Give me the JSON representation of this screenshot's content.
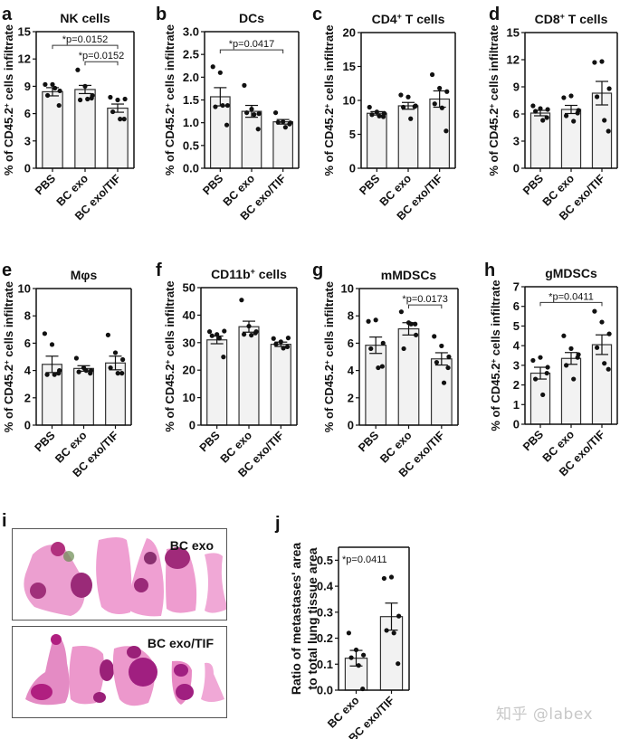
{
  "watermark": "知乎 @labex",
  "colors": {
    "bar_fill": "#f2f2f2",
    "bar_stroke": "#333333",
    "dot": "#111111",
    "tissue": "#e67fc0",
    "metastasis": "#b1207c",
    "necrosis": "#6a8a50"
  },
  "chart_data": [
    {
      "letter": "a",
      "type": "bar",
      "title": "NK cells",
      "title_sup": "",
      "ylabel": "% of CD45.2+ cells infiltrate",
      "categories": [
        "PBS",
        "BC exo",
        "BC exo/TIF"
      ],
      "ylim": [
        0,
        15
      ],
      "yticks": [
        0,
        3,
        6,
        9,
        12,
        15
      ],
      "means": [
        8.4,
        8.65,
        6.6
      ],
      "sem": [
        0.45,
        0.45,
        0.45
      ],
      "points": [
        [
          9.2,
          9.2,
          8.5,
          8.0,
          8.8,
          6.9
        ],
        [
          10.8,
          9.0,
          8.0,
          7.5,
          7.6,
          7.7
        ],
        [
          7.8,
          7.5,
          7.6,
          6.2,
          5.4,
          5.4
        ]
      ],
      "significance": [
        {
          "from": 0,
          "to": 2,
          "label": "*p=0.0152",
          "y": 13.5
        },
        {
          "from": 1,
          "to": 2,
          "label": "*p=0.0152",
          "y": 11.7
        }
      ]
    },
    {
      "letter": "b",
      "type": "bar",
      "title": "DCs",
      "title_sup": "",
      "ylabel": "% of CD45.2+ cells infiltrate",
      "categories": [
        "PBS",
        "BC exo",
        "BC exo/TIF"
      ],
      "ylim": [
        0,
        3.0
      ],
      "yticks": [
        "0.0",
        "0.5",
        "1.0",
        "1.5",
        "2.0",
        "2.5",
        "3.0"
      ],
      "means": [
        1.57,
        1.25,
        1.02
      ],
      "sem": [
        0.2,
        0.13,
        0.05
      ],
      "points": [
        [
          2.23,
          2.1,
          1.38,
          1.35,
          1.38,
          0.95
        ],
        [
          1.82,
          1.3,
          1.2,
          1.22,
          1.18,
          0.86
        ],
        [
          1.22,
          1.02,
          1.0,
          1.01,
          0.9,
          0.97
        ]
      ],
      "significance": [
        {
          "from": 0,
          "to": 2,
          "label": "*p=0.0417",
          "y": 2.6
        }
      ]
    },
    {
      "letter": "c",
      "type": "bar",
      "title": "CD4",
      "title_sup": "+",
      "title_suffix": " T cells",
      "ylabel": "% of CD45.2+ cells infiltrate",
      "categories": [
        "PBS",
        "BC exo",
        "BC exo/TIF"
      ],
      "ylim": [
        0,
        20
      ],
      "yticks": [
        0,
        5,
        10,
        15,
        20
      ],
      "means": [
        8.1,
        9.2,
        10.2
      ],
      "sem": [
        0.25,
        0.5,
        1.2
      ],
      "points": [
        [
          9.0,
          8.3,
          8.1,
          7.9,
          7.7,
          7.6
        ],
        [
          10.8,
          10.5,
          9.2,
          9.0,
          7.3,
          9.1
        ],
        [
          13.8,
          11.8,
          11.3,
          9.5,
          8.9,
          5.5
        ]
      ],
      "significance": []
    },
    {
      "letter": "d",
      "type": "bar",
      "title": "CD8",
      "title_sup": "+",
      "title_suffix": " T cells",
      "ylabel": "% of CD45.2+ cells infiltrate",
      "categories": [
        "PBS",
        "BC exo",
        "BC exo/TIF"
      ],
      "ylim": [
        0,
        15
      ],
      "yticks": [
        0,
        3,
        6,
        9,
        12,
        15
      ],
      "means": [
        6.1,
        6.5,
        8.3
      ],
      "sem": [
        0.3,
        0.45,
        1.3
      ],
      "points": [
        [
          6.9,
          6.6,
          6.5,
          6.3,
          5.3,
          5.6
        ],
        [
          7.8,
          8.0,
          6.4,
          5.8,
          5.2,
          6.1
        ],
        [
          11.7,
          11.8,
          8.8,
          7.9,
          5.3,
          4.1
        ]
      ],
      "significance": []
    },
    {
      "letter": "e",
      "type": "bar",
      "title": "Mφs",
      "title_sup": "",
      "ylabel": "% of CD45.2+ cells infiltrate",
      "categories": [
        "PBS",
        "BC exo",
        "BC exo/TIF"
      ],
      "ylim": [
        0,
        10
      ],
      "yticks": [
        0,
        2,
        4,
        6,
        8,
        10
      ],
      "means": [
        4.45,
        4.15,
        4.55
      ],
      "sem": [
        0.6,
        0.2,
        0.5
      ],
      "points": [
        [
          6.7,
          5.9,
          4.0,
          3.7,
          3.7,
          3.8
        ],
        [
          4.9,
          4.2,
          4.0,
          3.9,
          4.0,
          3.8
        ],
        [
          6.6,
          5.3,
          4.8,
          4.2,
          3.8,
          3.8
        ]
      ],
      "significance": []
    },
    {
      "letter": "f",
      "type": "bar",
      "title": "CD11b",
      "title_sup": "+",
      "title_suffix": " cells",
      "ylabel": "% of CD45.2+ cells infiltrate",
      "categories": [
        "PBS",
        "BC exo",
        "BC exo/TIF"
      ],
      "ylim": [
        0,
        50
      ],
      "yticks": [
        0,
        10,
        20,
        30,
        40,
        50
      ],
      "means": [
        31.0,
        35.8,
        29.4
      ],
      "sem": [
        1.4,
        2.0,
        0.8
      ],
      "points": [
        [
          34.0,
          33.0,
          34.2,
          32.5,
          31.6,
          24.8
        ],
        [
          45.5,
          36.0,
          34.0,
          33.0,
          32.7,
          33.5
        ],
        [
          31.5,
          30.3,
          31.7,
          29.5,
          28.0,
          28.5
        ]
      ],
      "significance": []
    },
    {
      "letter": "g",
      "type": "bar",
      "title": "mMDSCs",
      "title_sup": "",
      "ylabel": "% of CD45.2+ cells infiltrate",
      "categories": [
        "PBS",
        "BC exo",
        "BC exo/TIF"
      ],
      "ylim": [
        0,
        10
      ],
      "yticks": [
        0,
        2,
        4,
        6,
        8,
        10
      ],
      "means": [
        5.85,
        7.05,
        4.85
      ],
      "sem": [
        0.6,
        0.45,
        0.45
      ],
      "points": [
        [
          7.6,
          7.7,
          6.0,
          5.6,
          4.2,
          4.3
        ],
        [
          8.3,
          7.5,
          6.6,
          5.6,
          7.4,
          7.4
        ],
        [
          6.5,
          5.8,
          5.0,
          4.6,
          3.1,
          4.2
        ]
      ],
      "significance": [
        {
          "from": 1,
          "to": 2,
          "label": "*p=0.0173",
          "y": 8.8
        }
      ]
    },
    {
      "letter": "h",
      "type": "bar",
      "title": "gMDSCs",
      "title_sup": "",
      "ylabel": "% of CD45.2+ cells infiltrate",
      "categories": [
        "PBS",
        "BC exo",
        "BC exo/TIF"
      ],
      "ylim": [
        0,
        7
      ],
      "yticks": [
        0,
        1,
        2,
        3,
        4,
        5,
        6,
        7
      ],
      "means": [
        2.6,
        3.35,
        4.05
      ],
      "sem": [
        0.3,
        0.3,
        0.5
      ],
      "points": [
        [
          3.25,
          3.4,
          2.9,
          2.3,
          1.5,
          2.6
        ],
        [
          4.5,
          3.85,
          3.55,
          3.0,
          2.3,
          3.4
        ],
        [
          5.75,
          5.2,
          4.6,
          3.9,
          3.1,
          2.8
        ]
      ],
      "significance": [
        {
          "from": 0,
          "to": 2,
          "label": "*p=0.0411",
          "y": 6.2
        }
      ]
    },
    {
      "letter": "j",
      "type": "bar",
      "title": "",
      "title_sup": "",
      "ylabel": "Ratio of metastases' area",
      "ylabel2": "to total lung tissue area",
      "categories": [
        "BC exo",
        "BC exo/TIF"
      ],
      "ylim": [
        0,
        0.55
      ],
      "yticks": [
        "0.0",
        "0.1",
        "0.2",
        "0.3",
        "0.4",
        "0.5"
      ],
      "means": [
        0.123,
        0.283
      ],
      "sem": [
        0.03,
        0.052
      ],
      "points": [
        [
          0.22,
          0.155,
          0.135,
          0.125,
          0.095,
          0.005
        ],
        [
          0.43,
          0.435,
          0.285,
          0.23,
          0.22,
          0.102
        ]
      ],
      "annotation": "*p=0.0411",
      "significance": []
    }
  ],
  "histology": {
    "letter": "i",
    "panels": [
      {
        "label": "BC exo"
      },
      {
        "label": "BC exo/TIF"
      }
    ]
  }
}
